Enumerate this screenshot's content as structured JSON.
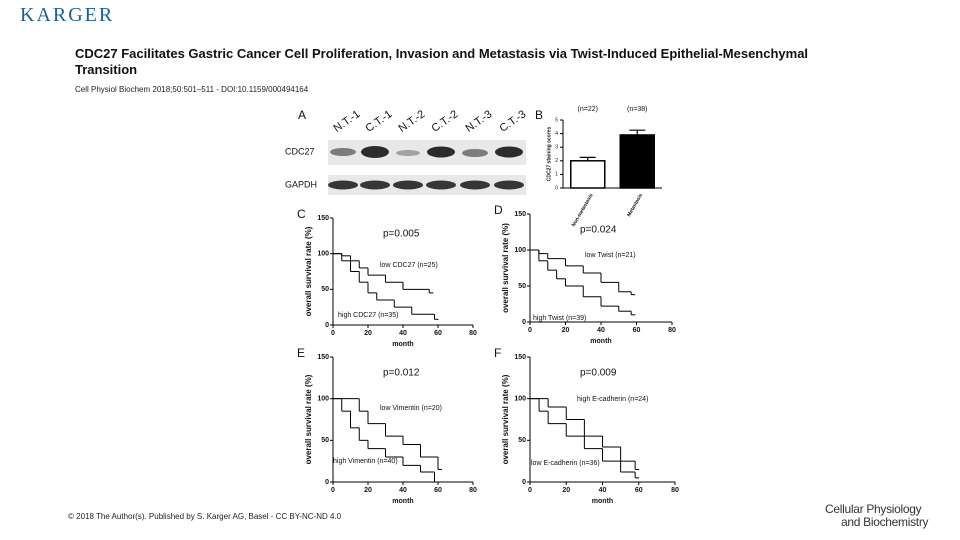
{
  "header": {
    "logo": "KARGER",
    "title": "CDC27 Facilitates Gastric Cancer Cell Proliferation, Invasion and Metastasis via Twist-Induced Epithelial-Mesenchymal Transition",
    "citation": "Cell Physiol Biochem 2018;50:501–511 - DOI:10.1159/000494164"
  },
  "figure": {
    "panel_a": {
      "label": "A",
      "lanes": [
        "N.T.-1",
        "C.T.-1",
        "N.T.-2",
        "C.T.-2",
        "N.T.-3",
        "C.T.-3"
      ],
      "rows": [
        "CDC27",
        "GAPDH"
      ]
    }
  },
  "chart_data": [
    {
      "type": "bar",
      "label": "B",
      "categories": [
        "Non-metastasis",
        "Metastasis"
      ],
      "values": [
        2.0,
        3.9
      ],
      "errors": [
        0.25,
        0.35
      ],
      "annotations": [
        "(n=22)",
        "(n=38)"
      ],
      "y_label": "CDC27 staining scores",
      "colors": [
        "#ffffff",
        "#000000"
      ],
      "ylim": [
        0,
        5
      ],
      "yticks": [
        0,
        1,
        2,
        3,
        4,
        5
      ]
    },
    {
      "type": "survival",
      "label": "C",
      "annotation": "p=0.005",
      "x_label": "month",
      "y_label": "overall survival rate (%)",
      "xlim": [
        0,
        80
      ],
      "xticks": [
        0,
        20,
        40,
        60,
        80
      ],
      "ylim": [
        0,
        150
      ],
      "yticks": [
        0,
        50,
        100,
        150
      ],
      "series": [
        {
          "name": "low CDC27 (n=25)",
          "color": "#000000",
          "x": [
            0,
            5,
            10,
            15,
            20,
            30,
            40,
            55
          ],
          "values": [
            100,
            97,
            90,
            80,
            70,
            60,
            50,
            45
          ]
        },
        {
          "name": "high CDC27 (n=35)",
          "color": "#000000",
          "x": [
            0,
            5,
            10,
            15,
            20,
            25,
            35,
            45,
            58
          ],
          "values": [
            100,
            90,
            75,
            60,
            45,
            35,
            25,
            15,
            8
          ]
        }
      ]
    },
    {
      "type": "survival",
      "label": "D",
      "annotation": "p=0.024",
      "x_label": "month",
      "y_label": "overall survival rate (%)",
      "xlim": [
        0,
        80
      ],
      "xticks": [
        0,
        20,
        40,
        60,
        80
      ],
      "ylim": [
        0,
        150
      ],
      "yticks": [
        0,
        50,
        100,
        150
      ],
      "series": [
        {
          "name": "low Twist (n=21)",
          "color": "#000000",
          "x": [
            0,
            5,
            10,
            20,
            30,
            40,
            50,
            57
          ],
          "values": [
            100,
            95,
            88,
            78,
            68,
            55,
            42,
            38
          ]
        },
        {
          "name": "high Twist (n=39)",
          "color": "#000000",
          "x": [
            0,
            5,
            10,
            15,
            20,
            30,
            40,
            50,
            57
          ],
          "values": [
            100,
            85,
            72,
            60,
            50,
            35,
            22,
            15,
            10
          ]
        }
      ]
    },
    {
      "type": "survival",
      "label": "E",
      "annotation": "p=0.012",
      "x_label": "month",
      "y_label": "overall survival rate (%)",
      "xlim": [
        0,
        80
      ],
      "xticks": [
        0,
        20,
        40,
        60,
        80
      ],
      "ylim": [
        0,
        150
      ],
      "yticks": [
        0,
        50,
        100,
        150
      ],
      "series": [
        {
          "name": "low Vimentin (n=20)",
          "color": "#000000",
          "x": [
            0,
            10,
            15,
            20,
            30,
            40,
            50,
            60
          ],
          "values": [
            100,
            100,
            85,
            70,
            55,
            45,
            30,
            15
          ]
        },
        {
          "name": "high Vimentin (n=40)",
          "color": "#000000",
          "x": [
            0,
            5,
            10,
            15,
            20,
            30,
            40,
            50,
            58
          ],
          "values": [
            100,
            85,
            65,
            50,
            40,
            30,
            20,
            12,
            0
          ]
        }
      ]
    },
    {
      "type": "survival",
      "label": "F",
      "annotation": "p=0.009",
      "x_label": "month",
      "y_label": "overall survival rate (%)",
      "xlim": [
        0,
        80
      ],
      "xticks": [
        0,
        20,
        40,
        60,
        80
      ],
      "ylim": [
        0,
        150
      ],
      "yticks": [
        0,
        50,
        100,
        150
      ],
      "series": [
        {
          "name": "high E-cadherin (n=24)",
          "color": "#000000",
          "x": [
            0,
            10,
            20,
            30,
            40,
            50,
            58
          ],
          "values": [
            100,
            90,
            75,
            55,
            42,
            25,
            15
          ]
        },
        {
          "name": "low E-cadherin (n=36)",
          "color": "#000000",
          "x": [
            0,
            5,
            10,
            20,
            30,
            40,
            50,
            58
          ],
          "values": [
            100,
            85,
            70,
            55,
            40,
            25,
            12,
            5
          ]
        }
      ]
    }
  ],
  "footer": {
    "copyright": "© 2018 The Author(s). Published by S. Karger AG, Basel - CC BY-NC-ND 4.0",
    "journal": [
      "Cellular Physiology",
      "and Biochemistry"
    ]
  }
}
